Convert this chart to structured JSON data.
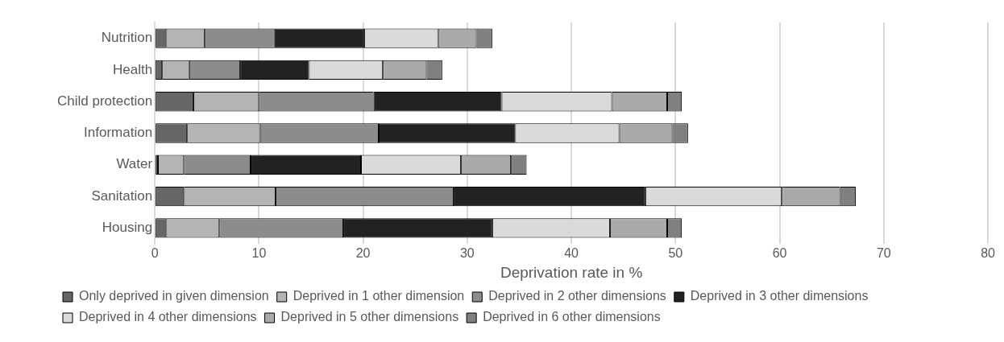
{
  "chart_data": {
    "type": "bar",
    "orientation": "horizontal",
    "stacked": true,
    "xlabel": "Deprivation rate in %",
    "categories": [
      "Nutrition",
      "Health",
      "Child protection",
      "Information",
      "Water",
      "Sanitation",
      "Housing"
    ],
    "series": [
      {
        "name": "Only deprived in given dimension",
        "color": "#666666",
        "values": [
          1.1,
          0.7,
          3.7,
          3.1,
          0.3,
          2.8,
          1.1
        ]
      },
      {
        "name": "Deprived in 1 other dimension",
        "color": "#b4b4b4",
        "values": [
          3.7,
          2.6,
          6.3,
          7.0,
          2.5,
          8.8,
          5.1
        ]
      },
      {
        "name": "Deprived in 2 other dimensions",
        "color": "#8c8c8c",
        "values": [
          6.7,
          4.9,
          11.0,
          11.4,
          6.4,
          17.1,
          11.9
        ]
      },
      {
        "name": "Deprived in 3 other dimensions",
        "color": "#222222",
        "values": [
          8.6,
          6.6,
          12.3,
          13.1,
          10.6,
          18.4,
          14.3
        ]
      },
      {
        "name": "Deprived in 4 other dimensions",
        "color": "#dadada",
        "values": [
          7.1,
          7.1,
          10.6,
          10.0,
          9.6,
          13.1,
          11.3
        ]
      },
      {
        "name": "Deprived in 5 other dimensions",
        "color": "#aaaaaa",
        "values": [
          3.7,
          4.2,
          5.3,
          5.1,
          4.8,
          5.6,
          5.5
        ]
      },
      {
        "name": "Deprived in 6 other dimensions",
        "color": "#808080",
        "values": [
          1.5,
          1.5,
          1.4,
          1.5,
          1.5,
          1.5,
          1.4
        ]
      }
    ],
    "xlim": [
      0,
      80
    ],
    "xticks": [
      0,
      10,
      20,
      30,
      40,
      50,
      60,
      70,
      80
    ],
    "grid": "x",
    "legend": "bottom"
  }
}
